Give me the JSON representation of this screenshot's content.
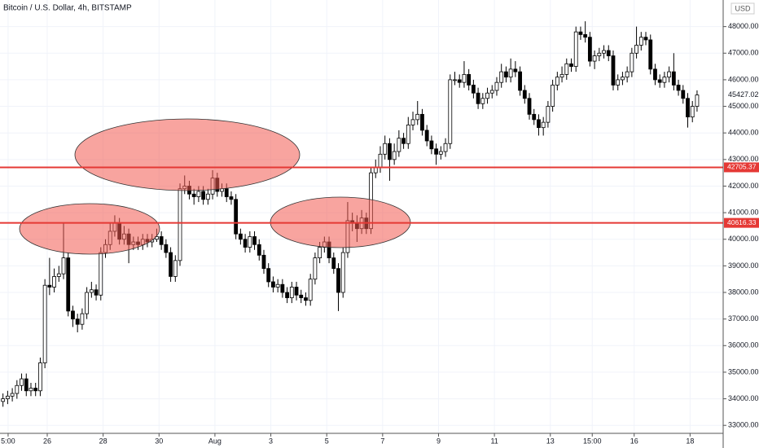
{
  "chart_data": {
    "type": "candlestick",
    "title": "Bitcoin / U.S. Dollar, 4h, BITSTAMP",
    "y_axis_label": "USD",
    "categories": [
      null,
      null,
      null,
      null,
      null,
      null,
      null,
      null,
      null,
      null,
      null,
      null,
      null,
      null,
      null,
      null,
      null,
      null,
      null,
      null,
      null,
      null,
      null,
      null,
      null,
      null,
      null,
      null,
      null,
      null,
      null,
      null,
      null,
      null,
      null,
      null,
      null,
      null,
      null,
      null,
      null,
      null,
      null,
      null,
      null,
      null,
      null,
      null,
      null,
      null,
      null,
      null,
      null,
      null,
      null,
      null,
      null,
      null,
      null,
      null,
      null,
      null,
      null,
      null,
      null,
      null,
      null,
      null,
      null,
      null,
      null,
      null,
      null,
      null,
      null,
      null,
      null,
      null,
      null,
      null,
      null,
      null,
      null,
      null,
      null,
      null,
      null,
      null,
      null,
      null,
      null,
      null,
      null,
      null,
      null,
      null,
      null,
      null,
      null,
      null,
      null,
      null,
      null,
      null,
      null,
      null,
      null,
      null,
      null,
      null,
      null,
      null,
      null,
      null,
      null,
      null,
      null,
      null,
      null,
      null,
      null,
      null,
      null,
      null,
      null,
      null,
      null,
      null,
      null,
      null,
      null,
      null,
      null,
      null,
      null,
      null,
      null,
      null,
      null,
      null,
      null,
      null,
      null,
      null,
      null,
      null,
      null,
      null,
      null,
      null
    ],
    "open": [
      33900,
      34000,
      34100,
      34200,
      34500,
      34750,
      34300,
      34400,
      34300,
      35350,
      38270,
      38200,
      38600,
      38700,
      39300,
      37300,
      37000,
      36800,
      37200,
      38000,
      38100,
      37900,
      39500,
      39800,
      40300,
      40600,
      40000,
      40200,
      39800,
      39900,
      39800,
      40000,
      39900,
      40000,
      40100,
      39800,
      39500,
      38600,
      39200,
      41900,
      42000,
      41700,
      41600,
      41800,
      41500,
      41700,
      42300,
      41800,
      41900,
      41600,
      41500,
      40200,
      40000,
      39700,
      40100,
      39800,
      39400,
      38900,
      38400,
      38200,
      38300,
      38000,
      37800,
      38200,
      37900,
      37800,
      37700,
      38500,
      39300,
      39700,
      39900,
      39300,
      38900,
      38000,
      39500,
      40700,
      40600,
      40400,
      40800,
      40400,
      42500,
      42700,
      43200,
      43600,
      43000,
      43300,
      43800,
      43600,
      44300,
      44500,
      44700,
      44100,
      43700,
      43400,
      43200,
      43300,
      43600,
      46000,
      46000,
      45900,
      46200,
      45800,
      45500,
      45100,
      45300,
      45500,
      45600,
      45900,
      46300,
      46100,
      46400,
      46300,
      45600,
      45300,
      44700,
      44500,
      44200,
      44400,
      45000,
      45800,
      46100,
      46200,
      46600,
      46500,
      47800,
      47700,
      47600,
      46700,
      46900,
      47000,
      47100,
      46900,
      45800,
      46000,
      46100,
      46300,
      47000,
      47300,
      47600,
      47500,
      46400,
      46000,
      45900,
      46100,
      46300,
      45800,
      45600,
      45300,
      44600,
      45000
    ],
    "high": [
      34200,
      34300,
      34400,
      34700,
      34950,
      34950,
      34600,
      34600,
      35550,
      38500,
      39300,
      38900,
      39000,
      40600,
      39500,
      37500,
      37200,
      37400,
      38200,
      38400,
      38300,
      39700,
      40000,
      40600,
      40900,
      40800,
      40500,
      40400,
      40100,
      40100,
      40200,
      40200,
      40200,
      40400,
      40300,
      40000,
      39700,
      39400,
      42100,
      42400,
      42200,
      41900,
      42000,
      42000,
      41900,
      42600,
      42500,
      42100,
      42100,
      41800,
      41700,
      40400,
      40200,
      40300,
      40300,
      40000,
      39600,
      39100,
      38600,
      38500,
      38500,
      38200,
      38400,
      38400,
      38100,
      38000,
      38700,
      39500,
      39900,
      40100,
      40100,
      39500,
      39100,
      39700,
      41400,
      41000,
      40900,
      41100,
      41000,
      42700,
      43000,
      43500,
      43900,
      43800,
      43600,
      44100,
      44000,
      44600,
      44800,
      45200,
      44900,
      44300,
      43900,
      43600,
      43500,
      43800,
      46200,
      46300,
      46200,
      46700,
      46400,
      46000,
      45700,
      45500,
      45700,
      45800,
      46100,
      46600,
      46500,
      46800,
      46700,
      46500,
      45800,
      45500,
      44900,
      44700,
      44600,
      45200,
      46000,
      46300,
      46500,
      46800,
      46800,
      48000,
      48000,
      48200,
      47800,
      47100,
      47200,
      47300,
      47300,
      47100,
      46200,
      46300,
      46500,
      47200,
      48000,
      47800,
      47800,
      47700,
      46600,
      46200,
      46300,
      46500,
      47000,
      46000,
      45800,
      45500,
      45200,
      45600
    ],
    "low": [
      33700,
      33800,
      33900,
      34000,
      34300,
      34100,
      34100,
      34100,
      34100,
      35150,
      37900,
      38000,
      38400,
      38500,
      37100,
      36700,
      36500,
      36600,
      37000,
      37800,
      37700,
      37700,
      39300,
      39600,
      40100,
      39800,
      39800,
      39100,
      39600,
      39600,
      39600,
      39700,
      39700,
      39900,
      39600,
      39300,
      38400,
      38400,
      39000,
      41700,
      41500,
      41300,
      41400,
      41300,
      41300,
      41500,
      41600,
      41600,
      41400,
      41300,
      40000,
      39800,
      39500,
      39500,
      39600,
      39200,
      38700,
      38200,
      38000,
      38000,
      37800,
      37600,
      37600,
      37700,
      37600,
      37500,
      37500,
      38300,
      39100,
      39500,
      39100,
      38700,
      37300,
      37800,
      39300,
      40300,
      39900,
      40200,
      40200,
      40200,
      42300,
      42500,
      43000,
      42200,
      42800,
      43100,
      43400,
      43400,
      44100,
      44300,
      43900,
      43500,
      43200,
      42800,
      43000,
      43100,
      43400,
      45800,
      45700,
      45700,
      45600,
      45300,
      44900,
      44900,
      45100,
      45300,
      45400,
      45700,
      45900,
      45900,
      46100,
      45400,
      45100,
      44500,
      44300,
      43900,
      43900,
      44200,
      44800,
      45600,
      45900,
      46000,
      46300,
      46300,
      47500,
      47400,
      46500,
      46400,
      46700,
      46800,
      46700,
      45600,
      45600,
      45800,
      45900,
      46100,
      46800,
      47100,
      47300,
      46200,
      45800,
      45700,
      45700,
      45900,
      45600,
      45400,
      45100,
      44200,
      44400,
      44800
    ],
    "close": [
      34000,
      34100,
      34200,
      34500,
      34750,
      34300,
      34400,
      34300,
      35350,
      38270,
      38200,
      38600,
      38700,
      39300,
      37300,
      37000,
      36800,
      37200,
      38000,
      38100,
      37900,
      39500,
      39800,
      40300,
      40600,
      40000,
      40200,
      39800,
      39900,
      39800,
      40000,
      39900,
      40000,
      40100,
      39800,
      39500,
      38600,
      39200,
      41900,
      42000,
      41700,
      41600,
      41800,
      41500,
      41700,
      42300,
      41800,
      41900,
      41600,
      41500,
      40200,
      40000,
      39700,
      40100,
      39800,
      39400,
      38900,
      38400,
      38200,
      38300,
      38000,
      37800,
      38200,
      37900,
      37800,
      37700,
      38500,
      39300,
      39700,
      39900,
      39300,
      38900,
      38000,
      39500,
      40700,
      40600,
      40400,
      40800,
      40400,
      42500,
      42700,
      43200,
      43600,
      43000,
      43300,
      43800,
      43600,
      44300,
      44500,
      44700,
      44100,
      43700,
      43400,
      43200,
      43300,
      43600,
      46000,
      46000,
      45900,
      46200,
      45800,
      45500,
      45100,
      45300,
      45500,
      45600,
      45900,
      46300,
      46100,
      46400,
      46300,
      45600,
      45300,
      44700,
      44500,
      44200,
      44400,
      45000,
      45800,
      46100,
      46200,
      46600,
      46500,
      47800,
      47700,
      47600,
      46700,
      46900,
      47000,
      47100,
      46900,
      45800,
      46000,
      46100,
      46300,
      47000,
      47300,
      47600,
      47500,
      46400,
      46000,
      45900,
      46100,
      46300,
      45800,
      45600,
      45300,
      44600,
      45000,
      45427.02
    ],
    "up_color": "#ffffff",
    "down_color": "#000000",
    "xticks": [
      {
        "value": 1.6,
        "label": "5:00"
      },
      {
        "value": 10,
        "label": "26"
      },
      {
        "value": 22,
        "label": "28"
      },
      {
        "value": 34,
        "label": "30"
      },
      {
        "value": 46,
        "label": "Aug"
      },
      {
        "value": 58,
        "label": "3"
      },
      {
        "value": 70,
        "label": "5"
      },
      {
        "value": 82,
        "label": "7"
      },
      {
        "value": 94,
        "label": "9"
      },
      {
        "value": 106,
        "label": "11"
      },
      {
        "value": 118,
        "label": "13"
      },
      {
        "value": 127,
        "label": "15:00"
      },
      {
        "value": 136,
        "label": "16"
      },
      {
        "value": 148,
        "label": "18"
      }
    ],
    "ylim": [
      32700,
      49000
    ],
    "yticks": [
      {
        "value": 33000,
        "label": "33000.00"
      },
      {
        "value": 34000,
        "label": "34000.00"
      },
      {
        "value": 35000,
        "label": "35000.00"
      },
      {
        "value": 36000,
        "label": "36000.00"
      },
      {
        "value": 37000,
        "label": "37000.00"
      },
      {
        "value": 38000,
        "label": "38000.00"
      },
      {
        "value": 39000,
        "label": "39000.00"
      },
      {
        "value": 40000,
        "label": "40000.00"
      },
      {
        "value": 41000,
        "label": "41000.00"
      },
      {
        "value": 42000,
        "label": "42000.00"
      },
      {
        "value": 43000,
        "label": "43000.00"
      },
      {
        "value": 44000,
        "label": "44000.00"
      },
      {
        "value": 45000,
        "label": "45000.00"
      },
      {
        "value": 46000,
        "label": "46000.00"
      },
      {
        "value": 47000,
        "label": "47000.00"
      },
      {
        "value": 48000,
        "label": "48000.00"
      }
    ],
    "hlines": [
      42705.37,
      40616.33
    ],
    "hline_color": "#e53935",
    "grid": true
  }
}
